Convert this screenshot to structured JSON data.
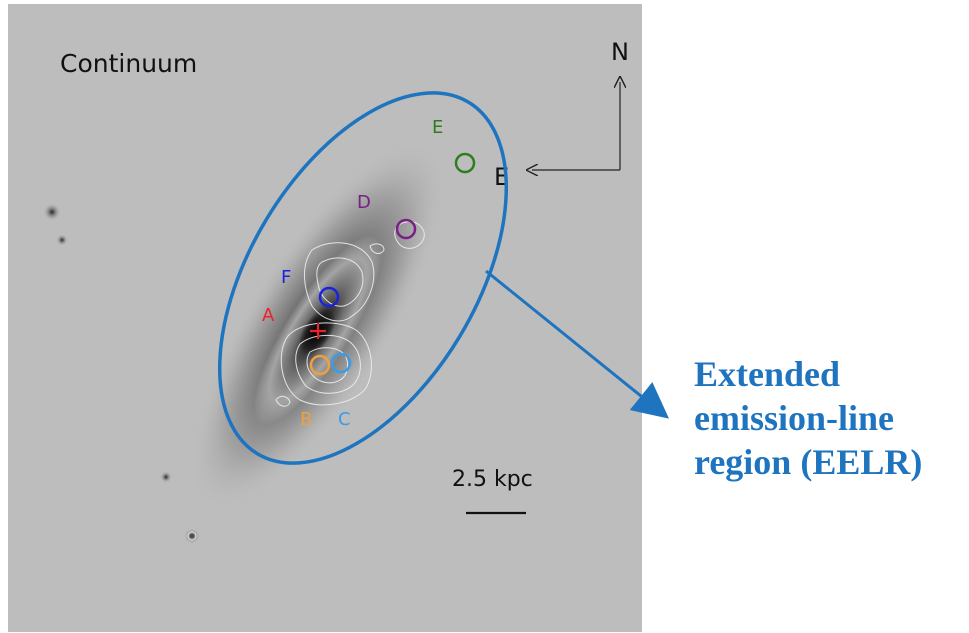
{
  "panel_title": "Continuum",
  "compass": {
    "north": "N",
    "east": "E"
  },
  "scale_bar": {
    "label": "2.5 kpc"
  },
  "regions": [
    {
      "id": "A",
      "label": "A",
      "color": "#e8242a",
      "marker": "cross"
    },
    {
      "id": "B",
      "label": "B",
      "color": "#f0a040",
      "marker": "circle"
    },
    {
      "id": "C",
      "label": "C",
      "color": "#3a9be8",
      "marker": "circle"
    },
    {
      "id": "D",
      "label": "D",
      "color": "#7a1f86",
      "marker": "circle"
    },
    {
      "id": "E",
      "label": "E",
      "color": "#2e7d1f",
      "marker": "circle"
    },
    {
      "id": "F",
      "label": "F",
      "color": "#1a22e0",
      "marker": "circle"
    }
  ],
  "eelr_annotation": {
    "color": "#1f74bf",
    "lines": [
      "Extended",
      "emission-line",
      "region (EELR)"
    ]
  }
}
